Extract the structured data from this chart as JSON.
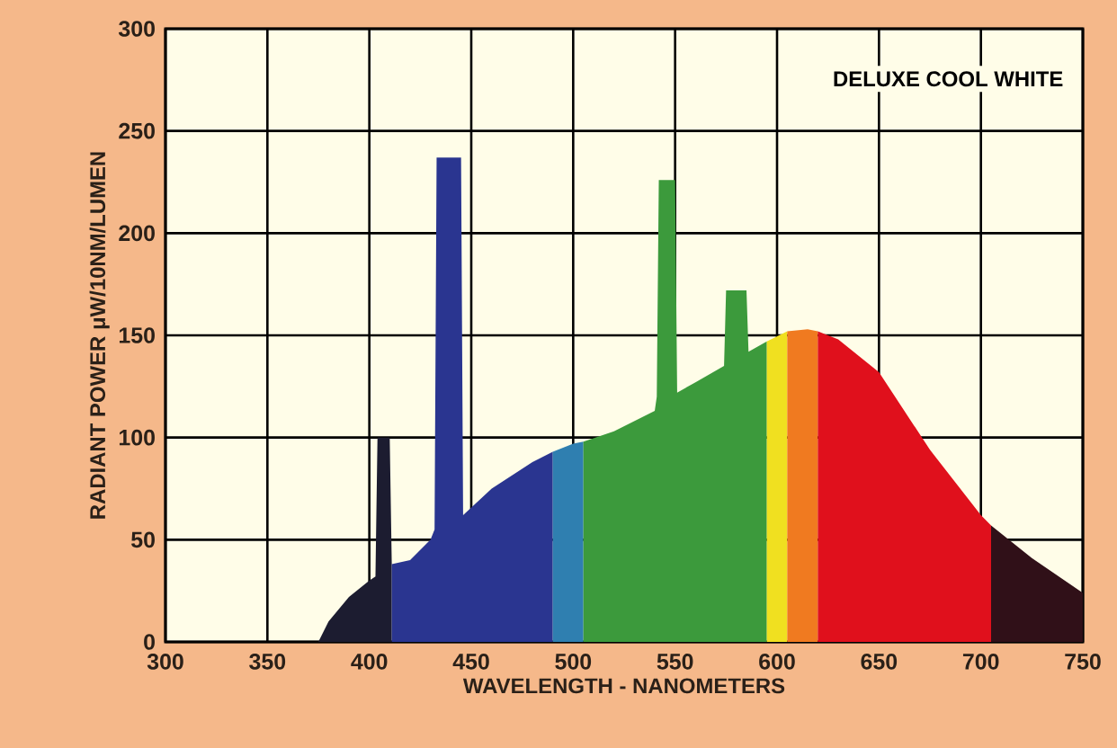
{
  "chart_data": {
    "type": "area",
    "xlabel": "WAVELENGTH - NANOMETERS",
    "ylabel": "RADIANT POWER μW/10NM/LUMEN",
    "annotations": [
      "DELUXE COOL WHITE"
    ],
    "xlim": [
      300,
      750
    ],
    "ylim": [
      0,
      300
    ],
    "xticks": [
      300,
      350,
      400,
      450,
      500,
      550,
      600,
      650,
      700,
      750
    ],
    "yticks": [
      0,
      50,
      100,
      150,
      200,
      250,
      300
    ],
    "grid": true,
    "series": [
      {
        "color": "#1c1c30",
        "x": [
          375,
          380,
          390,
          400,
          403,
          404,
          410,
          411
        ],
        "values": [
          0,
          10,
          22,
          30,
          32,
          100,
          100,
          38
        ]
      },
      {
        "color": "#2a3590",
        "x": [
          411,
          420,
          430,
          432,
          433,
          445,
          446,
          460,
          480,
          490
        ],
        "values": [
          38,
          40,
          50,
          55,
          237,
          237,
          62,
          75,
          88,
          93
        ]
      },
      {
        "color": "#2f7fb0",
        "x": [
          490,
          500,
          505
        ],
        "values": [
          93,
          97,
          98
        ]
      },
      {
        "color": "#3c9a3c",
        "x": [
          505,
          520,
          540,
          541,
          542,
          550,
          551,
          560,
          574,
          575,
          585,
          586,
          595
        ],
        "values": [
          98,
          103,
          113,
          120,
          226,
          226,
          122,
          127,
          135,
          172,
          172,
          142,
          147
        ]
      },
      {
        "color": "#f0e020",
        "x": [
          595,
          605
        ],
        "values": [
          147,
          152
        ]
      },
      {
        "color": "#f07a20",
        "x": [
          605,
          615,
          620
        ],
        "values": [
          152,
          153,
          152
        ]
      },
      {
        "color": "#e0101c",
        "x": [
          620,
          630,
          650,
          675,
          700,
          705
        ],
        "values": [
          152,
          148,
          132,
          94,
          62,
          57
        ]
      },
      {
        "color": "#301018",
        "x": [
          705,
          725,
          750
        ],
        "values": [
          57,
          41,
          24
        ]
      }
    ]
  }
}
